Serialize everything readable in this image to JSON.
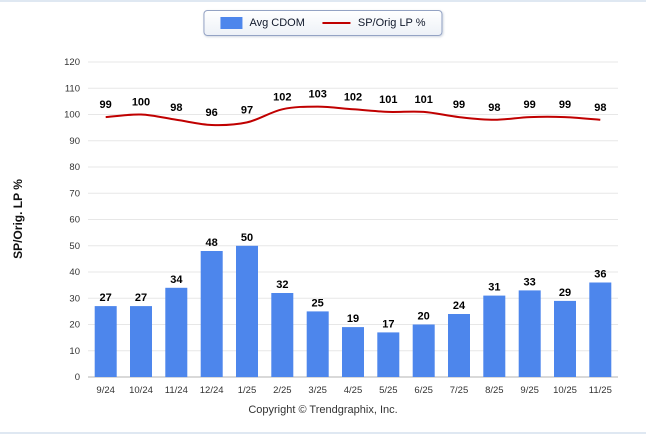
{
  "footer": {
    "text": "Copyright © Trendgraphix, Inc."
  },
  "chart_data": {
    "type": "bar+line",
    "title": "",
    "xlabel": "",
    "ylabel": "SP/Orig. LP %",
    "ylim": [
      0,
      120
    ],
    "ytick_step": 10,
    "grid": true,
    "legend_position": "top",
    "categories": [
      "9/24",
      "10/24",
      "11/24",
      "12/24",
      "1/25",
      "2/25",
      "3/25",
      "4/25",
      "5/25",
      "6/25",
      "7/25",
      "8/25",
      "9/25",
      "10/25",
      "11/25"
    ],
    "series": [
      {
        "name": "Avg CDOM",
        "type": "bar",
        "color": "#4d86ec",
        "values": [
          27,
          27,
          34,
          48,
          50,
          32,
          25,
          19,
          17,
          20,
          24,
          31,
          33,
          29,
          36
        ]
      },
      {
        "name": "SP/Orig LP %",
        "type": "line",
        "color": "#c00000",
        "values": [
          99,
          100,
          98,
          96,
          97,
          102,
          103,
          102,
          101,
          101,
          99,
          98,
          99,
          99,
          98
        ]
      }
    ],
    "value_label_color": "#000000",
    "tick_label_color": "#333333",
    "gridline_color": "#e7e7e7",
    "axis_line_color": "#b3b3b3"
  }
}
